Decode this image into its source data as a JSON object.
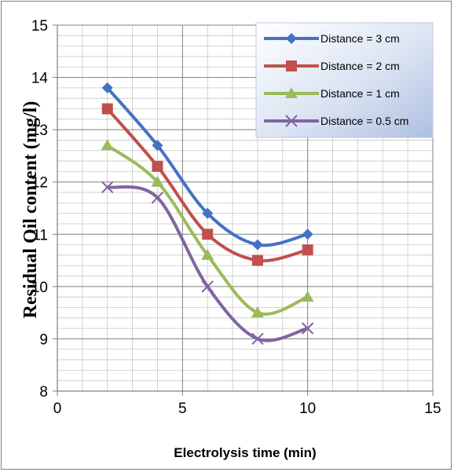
{
  "chart_data": {
    "type": "line",
    "title": "",
    "xlabel": "Electrolysis time (min)",
    "ylabel": "Residual Oil content (mg/l)",
    "xlim": [
      0,
      15
    ],
    "ylim": [
      8,
      15
    ],
    "xticks": [
      0,
      5,
      10,
      15
    ],
    "yticks": [
      8,
      9,
      10,
      11,
      12,
      13,
      14,
      15
    ],
    "grid": true,
    "legend_position": "top-right",
    "x": [
      2,
      4,
      6,
      8,
      10
    ],
    "series": [
      {
        "name": "Distance = 3 cm",
        "values": [
          13.8,
          12.7,
          11.4,
          10.8,
          11.0
        ],
        "color": "#4472C4",
        "marker": "diamond"
      },
      {
        "name": "Distance = 2 cm",
        "values": [
          13.4,
          12.3,
          11.0,
          10.5,
          10.7
        ],
        "color": "#C0504D",
        "marker": "square"
      },
      {
        "name": "Distance = 1 cm",
        "values": [
          12.7,
          12.0,
          10.6,
          9.5,
          9.8
        ],
        "color": "#9BBB59",
        "marker": "triangle"
      },
      {
        "name": "Distance = 0.5 cm",
        "values": [
          11.9,
          11.7,
          10.0,
          9.0,
          9.2
        ],
        "color": "#8064A2",
        "marker": "x"
      }
    ]
  }
}
